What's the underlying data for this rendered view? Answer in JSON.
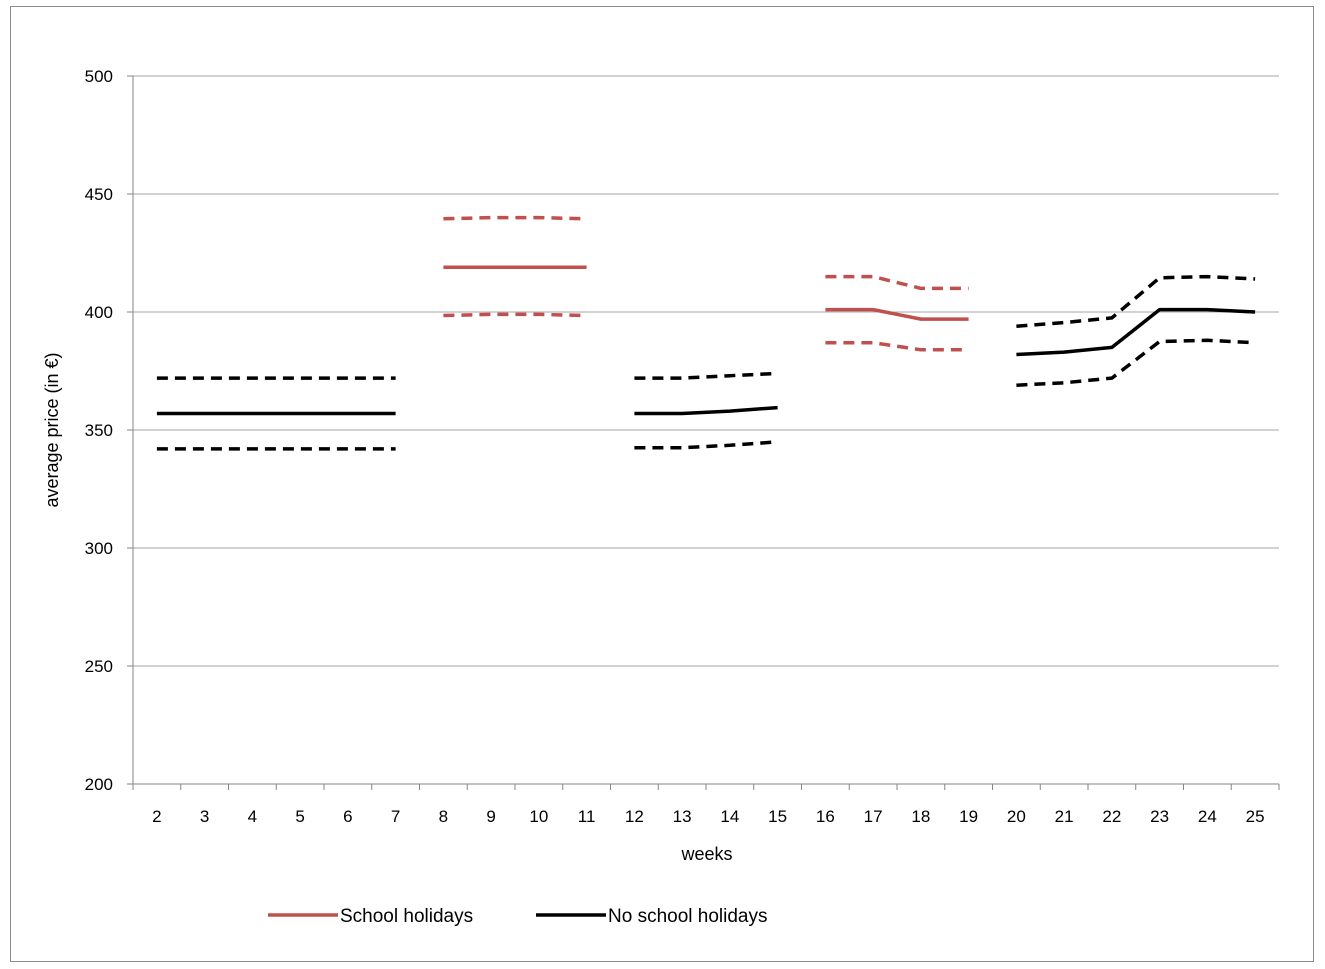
{
  "chart_data": {
    "type": "line",
    "title": "",
    "xlabel": "weeks",
    "ylabel": "average price (in €)",
    "ylim": [
      200,
      500
    ],
    "yticks": [
      "200",
      "250",
      "300",
      "350",
      "400",
      "450",
      "500"
    ],
    "categories": [
      "2",
      "3",
      "4",
      "5",
      "6",
      "7",
      "8",
      "9",
      "10",
      "11",
      "12",
      "13",
      "14",
      "15",
      "16",
      "17",
      "18",
      "19",
      "20",
      "21",
      "22",
      "23",
      "24",
      "25"
    ],
    "grid": "horizontal",
    "legend_position": "bottom",
    "colors": {
      "school": "#c0504d",
      "no_school": "#000000",
      "gridline": "#a6a6a6",
      "axis": "#868686"
    },
    "series": [
      {
        "name": "School holidays",
        "kind": "mean",
        "color": "#c0504d",
        "dashed": false,
        "segments": [
          {
            "x": [
              "8",
              "9",
              "10",
              "11"
            ],
            "y": [
              419,
              419,
              419,
              419
            ]
          },
          {
            "x": [
              "16",
              "17",
              "18",
              "19"
            ],
            "y": [
              401,
              401,
              397,
              397
            ]
          }
        ]
      },
      {
        "kind": "upper",
        "color": "#c0504d",
        "dashed": true,
        "segments": [
          {
            "x": [
              "8",
              "9",
              "10",
              "11"
            ],
            "y": [
              439.5,
              440,
              440,
              439.5
            ]
          },
          {
            "x": [
              "16",
              "17",
              "18",
              "19"
            ],
            "y": [
              415,
              415,
              410,
              410
            ]
          }
        ]
      },
      {
        "kind": "lower",
        "color": "#c0504d",
        "dashed": true,
        "segments": [
          {
            "x": [
              "8",
              "9",
              "10",
              "11"
            ],
            "y": [
              398.5,
              399,
              399,
              398.5
            ]
          },
          {
            "x": [
              "16",
              "17",
              "18",
              "19"
            ],
            "y": [
              387,
              387,
              384,
              384
            ]
          }
        ]
      },
      {
        "name": "No school holidays",
        "kind": "mean",
        "color": "#000000",
        "dashed": false,
        "segments": [
          {
            "x": [
              "2",
              "3",
              "4",
              "5",
              "6",
              "7"
            ],
            "y": [
              357,
              357,
              357,
              357,
              357,
              357
            ]
          },
          {
            "x": [
              "12",
              "13",
              "14",
              "15"
            ],
            "y": [
              357,
              357,
              358,
              359.5
            ]
          },
          {
            "x": [
              "20",
              "21",
              "22",
              "23",
              "24",
              "25"
            ],
            "y": [
              382,
              383,
              385,
              401,
              401,
              400
            ]
          }
        ]
      },
      {
        "kind": "upper",
        "color": "#000000",
        "dashed": true,
        "segments": [
          {
            "x": [
              "2",
              "3",
              "4",
              "5",
              "6",
              "7"
            ],
            "y": [
              372,
              372,
              372,
              372,
              372,
              372
            ]
          },
          {
            "x": [
              "12",
              "13",
              "14",
              "15"
            ],
            "y": [
              372,
              372,
              373,
              374
            ]
          },
          {
            "x": [
              "20",
              "21",
              "22",
              "23",
              "24",
              "25"
            ],
            "y": [
              394,
              395.5,
              397.5,
              414.5,
              415,
              414
            ]
          }
        ]
      },
      {
        "kind": "lower",
        "color": "#000000",
        "dashed": true,
        "segments": [
          {
            "x": [
              "2",
              "3",
              "4",
              "5",
              "6",
              "7"
            ],
            "y": [
              342,
              342,
              342,
              342,
              342,
              342
            ]
          },
          {
            "x": [
              "12",
              "13",
              "14",
              "15"
            ],
            "y": [
              342.5,
              342.5,
              343.5,
              345
            ]
          },
          {
            "x": [
              "20",
              "21",
              "22",
              "23",
              "24",
              "25"
            ],
            "y": [
              369,
              370,
              372,
              387.5,
              388,
              387
            ]
          }
        ]
      }
    ],
    "legend": [
      {
        "label": "School holidays",
        "color": "#c0504d"
      },
      {
        "label": "No school holidays",
        "color": "#000000"
      }
    ]
  }
}
